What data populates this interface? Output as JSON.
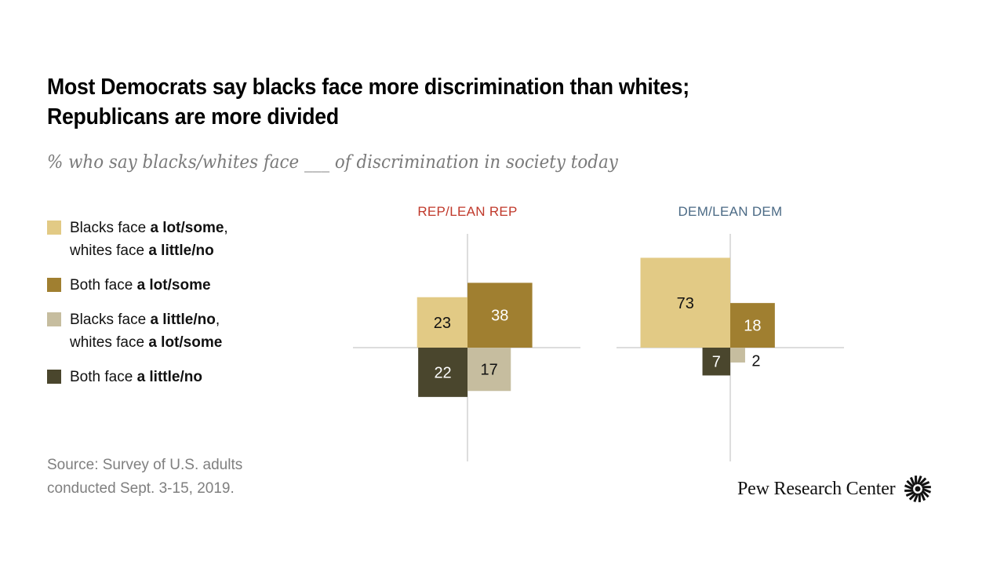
{
  "header": {
    "title_line1": "Most Democrats say blacks face more discrimination than whites;",
    "title_line2": "Republicans are more divided",
    "subtitle": "% who say blacks/whites face ___ of discrimination in society today"
  },
  "legend": [
    {
      "key": "blacks_more",
      "pre": "Blacks face ",
      "bold1": "a lot/some",
      "mid": ", whites face ",
      "bold2": "a little/no",
      "color": "#e2ca85"
    },
    {
      "key": "both_lot",
      "pre": "Both face ",
      "bold1": "a lot/some",
      "color": "#a07f30"
    },
    {
      "key": "whites_more",
      "pre": "Blacks face ",
      "bold1": "a little/no",
      "mid": ", whites face ",
      "bold2": "a lot/some",
      "color": "#c6bd9f"
    },
    {
      "key": "both_little",
      "pre": "Both face ",
      "bold1": "a little/no",
      "color": "#4a462d"
    }
  ],
  "source": {
    "line1": "Source: Survey of U.S. adults",
    "line2": "conducted Sept. 3-15, 2019."
  },
  "logo": {
    "text": "Pew Research Center"
  },
  "colors": {
    "rep_label": "#c0392b",
    "dem_label": "#4b6a85",
    "axis": "#bbbbbb"
  },
  "chart_data": {
    "type": "quadrant-area (proportional squares)",
    "title": "Most Democrats say blacks face more discrimination than whites; Republicans are more divided",
    "subtitle": "% who say blacks/whites face ___ of discrimination in society today",
    "unit": "%",
    "quadrants": {
      "top_left": "Blacks face a lot/some, whites face a little/no",
      "top_right": "Both face a lot/some",
      "bottom_right": "Blacks face a little/no, whites face a lot/some",
      "bottom_left": "Both face a little/no"
    },
    "series": [
      {
        "name": "REP/LEAN REP",
        "values": {
          "blacks_more": 23,
          "both_lot": 38,
          "whites_more": 17,
          "both_little": 22
        }
      },
      {
        "name": "DEM/LEAN DEM",
        "values": {
          "blacks_more": 73,
          "both_lot": 18,
          "whites_more": 2,
          "both_little": 7
        }
      }
    ]
  }
}
